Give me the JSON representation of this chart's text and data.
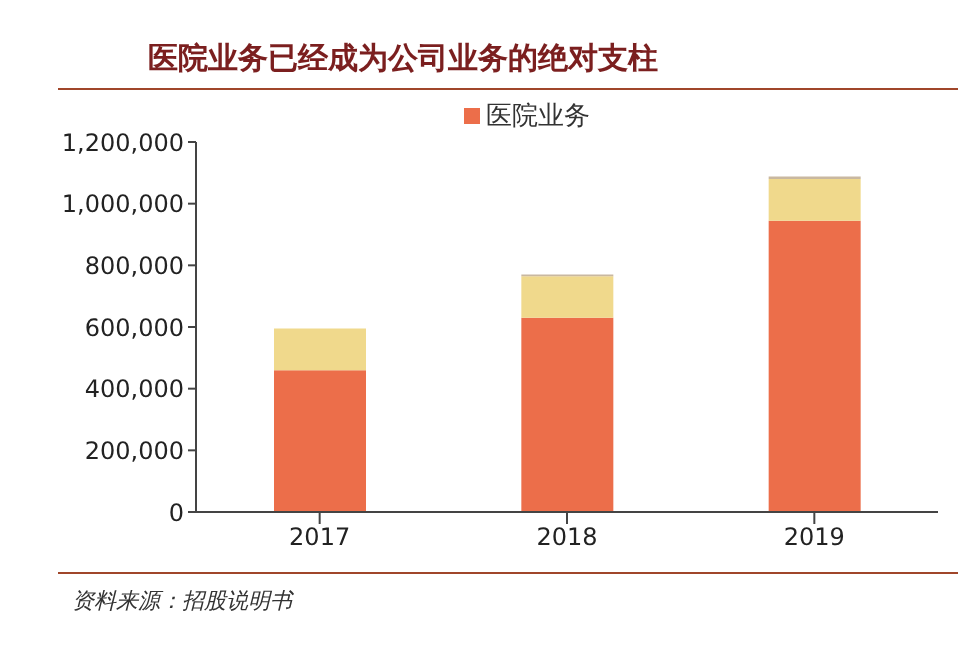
{
  "chart_data": {
    "type": "bar",
    "title": "医院业务已经成为公司业务的绝对支柱",
    "categories": [
      "2017",
      "2018",
      "2019"
    ],
    "stacked": true,
    "series": [
      {
        "name": "医院业务",
        "color": "#ec6e4a",
        "values": [
          460000,
          630000,
          945000
        ]
      },
      {
        "color": "#f0d98c",
        "values": [
          135000,
          135000,
          135000
        ]
      },
      {
        "color": "#c9b8a0",
        "values": [
          null,
          5000,
          8000
        ]
      }
    ],
    "ylim": [
      0,
      1200000
    ],
    "yticks": [
      {
        "value": 0,
        "label": "0"
      },
      {
        "value": 200000,
        "label": "200,000"
      },
      {
        "value": 400000,
        "label": "400,000"
      },
      {
        "value": 600000,
        "label": "600,000"
      },
      {
        "value": 800000,
        "label": "800,000"
      },
      {
        "value": 1000000,
        "label": "1,000,000"
      },
      {
        "value": 1200000,
        "label": "1,200,000"
      }
    ],
    "grid": false,
    "legend": "top",
    "annotations": [
      "资料来源：招股说明书"
    ]
  }
}
